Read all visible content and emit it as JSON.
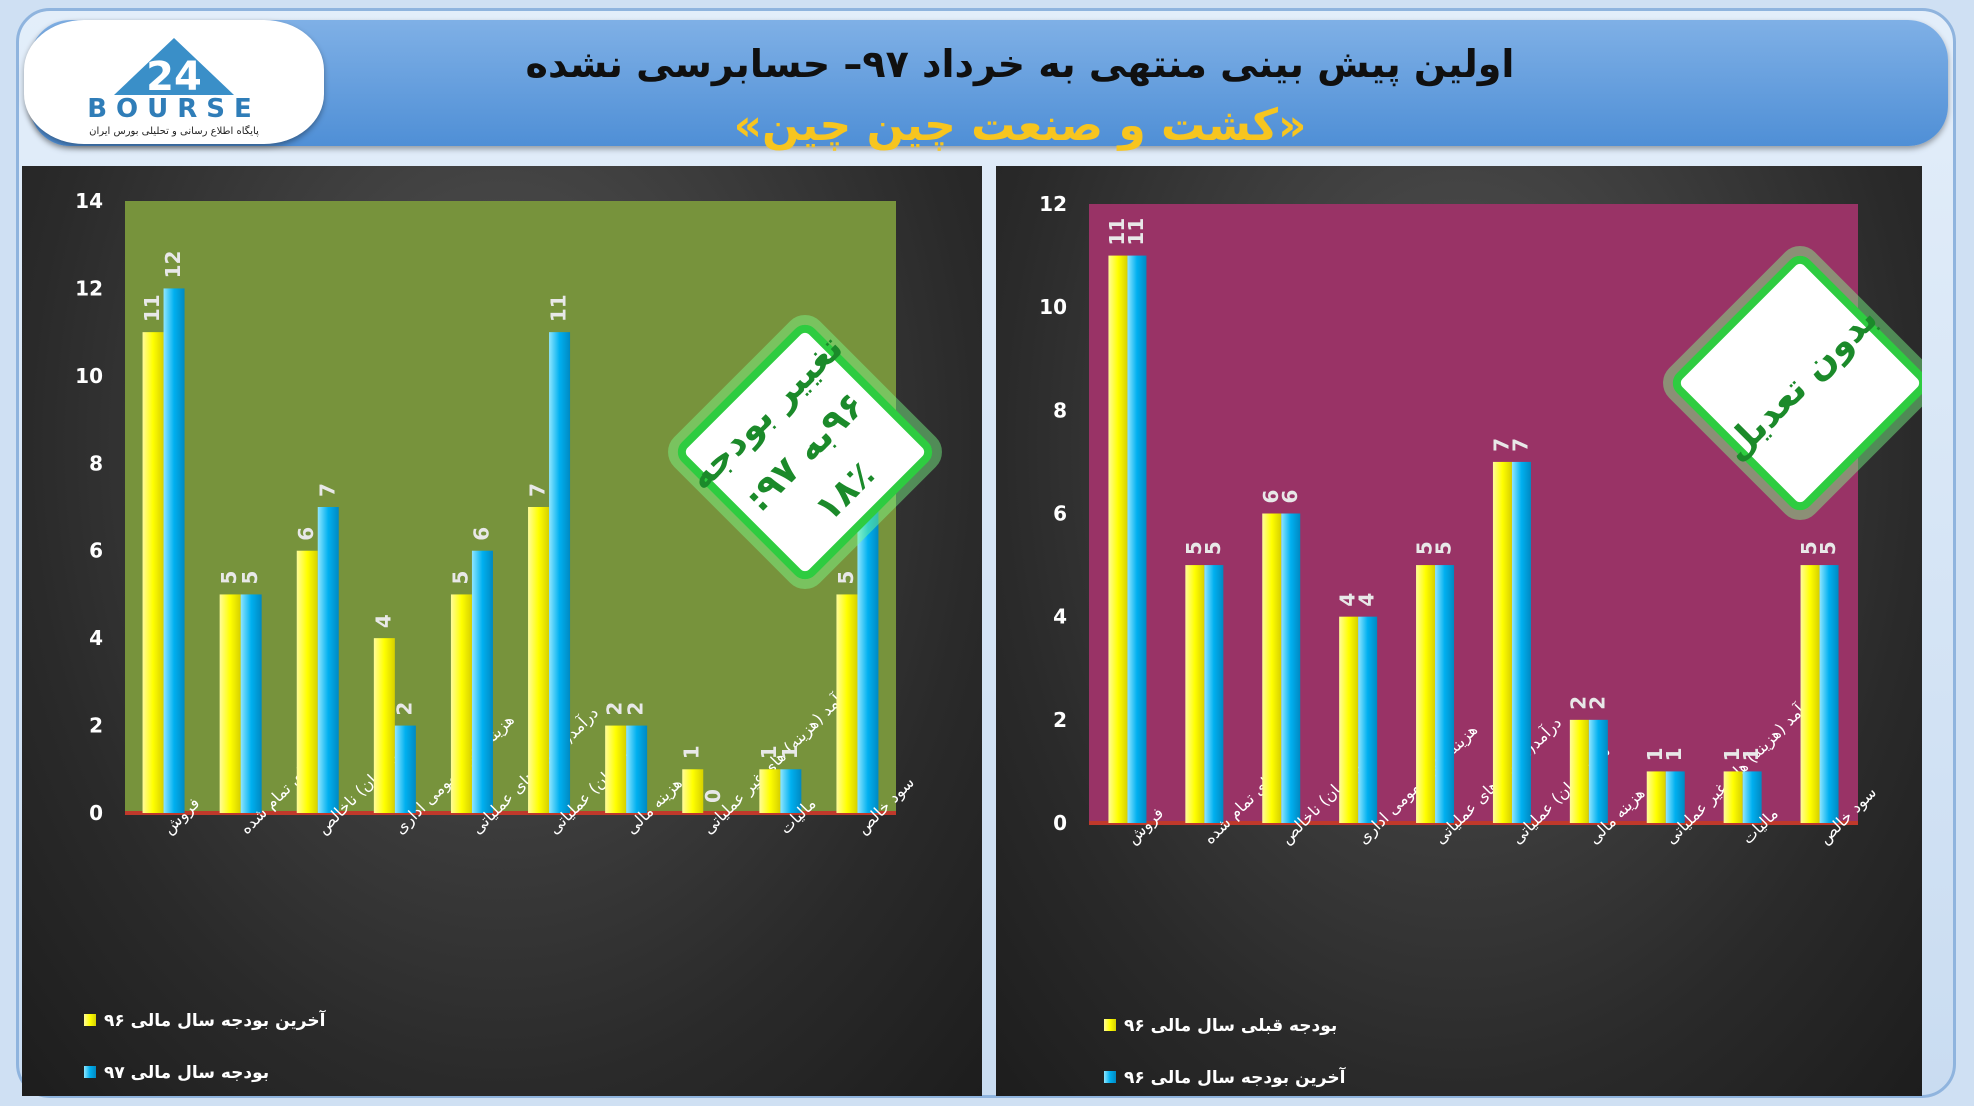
{
  "header": {
    "title": "اولین پیش بینی منتهی به خرداد ۹۷– حسابرسی نشده",
    "subtitle": "«کشت و صنعت چین چین»",
    "logo_text": "BOURSE",
    "logo_number": "24",
    "logo_caption": "پایگاه اطلاع رسانی و تحلیلی بورس ایران"
  },
  "colors": {
    "left_plot_bg": "#77933c",
    "right_plot_bg": "#993366",
    "series_yellow": "#ffff00",
    "series_blue": "#00b0f0",
    "badge_border": "#2ecc40"
  },
  "badges": {
    "left": [
      "تغییر بودجه",
      "۹۶به ۹۷:",
      "۱۸٪"
    ],
    "right": [
      "بدون تعدیل"
    ]
  },
  "chart_data": [
    {
      "type": "bar",
      "categories": [
        "فروش",
        "بهای تمام شده",
        "سود (زیان) ناخالص",
        "هزینه های عمومی اداری",
        "درآمد(هزینه) های عملیاتی",
        "سود (زیان) عملیاتی",
        "هزینه مالی",
        "درآمد (هزینه) های غیر عملیاتی",
        "مالیات",
        "سود خالص"
      ],
      "series": [
        {
          "name": "آخرین بودجه سال مالی ۹۶",
          "values": [
            11,
            5,
            6,
            4,
            5,
            7,
            2,
            1,
            1,
            5
          ]
        },
        {
          "name": "بودجه سال مالی ۹۷",
          "values": [
            12,
            5,
            7,
            2,
            6,
            11,
            2,
            0,
            1,
            7
          ]
        }
      ],
      "ylim": [
        0,
        14
      ],
      "yticks": [
        "0",
        "2",
        "4",
        "6",
        "8",
        "10",
        "12",
        "14"
      ],
      "legend_position": "bottom-left"
    },
    {
      "type": "bar",
      "categories": [
        "فروش",
        "بهای تمام شده",
        "سود (زیان) ناخالص",
        "هزینه های عمومی اداری",
        "درآمد(هزینه) های عملیاتی",
        "سود (زیان) عملیاتی",
        "هزینه مالی",
        "درآمد (هزینه) های غیر عملیاتی",
        "مالیات",
        "سود خالص"
      ],
      "series": [
        {
          "name": "بودجه قبلی سال مالی ۹۶",
          "values": [
            11,
            5,
            6,
            4,
            5,
            7,
            2,
            1,
            1,
            5
          ]
        },
        {
          "name": "آخرین بودجه سال مالی ۹۶",
          "values": [
            11,
            5,
            6,
            4,
            5,
            7,
            2,
            1,
            1,
            5
          ]
        }
      ],
      "ylim": [
        0,
        12
      ],
      "yticks": [
        "0",
        "2",
        "4",
        "6",
        "8",
        "10",
        "12"
      ],
      "legend_position": "bottom-left"
    }
  ]
}
